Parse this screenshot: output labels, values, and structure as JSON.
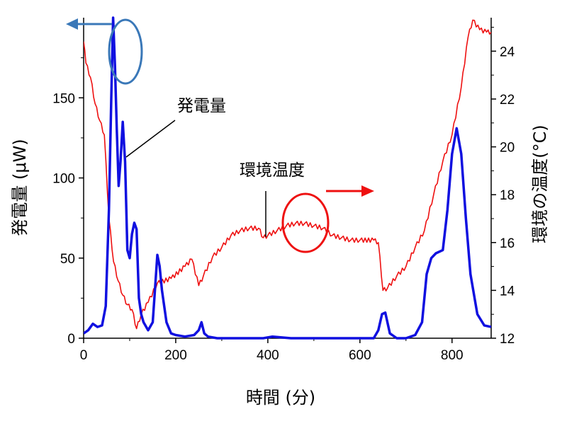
{
  "chart_data": {
    "type": "line",
    "xlabel": "時間 (分)",
    "ylabel_left": "発電量 (μW)",
    "ylabel_right": "環境の温度(°C)",
    "xlim": [
      0,
      885
    ],
    "ylim_left": [
      0,
      200
    ],
    "ylim_right": [
      12,
      25.4
    ],
    "x_ticks": [
      0,
      200,
      400,
      600,
      800
    ],
    "y_left_ticks": [
      0,
      50,
      100,
      150
    ],
    "y_right_ticks": [
      12,
      14,
      16,
      18,
      20,
      22,
      24
    ],
    "grid": false,
    "annotations": {
      "power": "発電量",
      "temperature": "環境温度"
    },
    "series": [
      {
        "name": "発電量",
        "axis": "left",
        "color": "#1010e0",
        "x": [
          0,
          10,
          20,
          30,
          40,
          48,
          55,
          60,
          64,
          68,
          72,
          76,
          80,
          85,
          90,
          95,
          100,
          105,
          110,
          115,
          120,
          125,
          130,
          140,
          150,
          160,
          165,
          170,
          180,
          190,
          200,
          220,
          240,
          250,
          256,
          262,
          270,
          290,
          320,
          360,
          390,
          410,
          450,
          500,
          550,
          600,
          630,
          640,
          648,
          655,
          665,
          680,
          700,
          720,
          735,
          745,
          755,
          765,
          780,
          790,
          800,
          810,
          820,
          830,
          840,
          855,
          870,
          885
        ],
        "y": [
          3,
          5,
          9,
          7,
          8,
          20,
          80,
          150,
          200,
          170,
          130,
          95,
          110,
          135,
          110,
          55,
          50,
          65,
          72,
          68,
          25,
          15,
          10,
          5,
          10,
          52,
          45,
          30,
          10,
          3,
          2,
          1,
          2,
          5,
          10,
          3,
          1,
          0,
          0,
          0,
          0,
          1,
          0,
          0,
          0,
          0,
          0,
          5,
          15,
          16,
          3,
          0,
          0,
          2,
          10,
          40,
          50,
          53,
          55,
          80,
          115,
          131,
          115,
          75,
          40,
          15,
          8,
          7
        ]
      },
      {
        "name": "環境温度",
        "axis": "right",
        "color": "#ee1010",
        "x": [
          0,
          5,
          15,
          25,
          35,
          45,
          55,
          65,
          75,
          85,
          95,
          105,
          115,
          125,
          140,
          160,
          190,
          220,
          235,
          250,
          260,
          280,
          300,
          320,
          340,
          360,
          380,
          390,
          400,
          420,
          440,
          460,
          480,
          500,
          520,
          540,
          560,
          580,
          600,
          630,
          640,
          650,
          660,
          680,
          700,
          720,
          740,
          760,
          780,
          800,
          820,
          835,
          845,
          860,
          875,
          885
        ],
        "y": [
          24.4,
          23.5,
          22.9,
          21.8,
          21.1,
          20.5,
          17.0,
          15.2,
          14.4,
          13.8,
          13.4,
          13.2,
          12.4,
          13.0,
          13.5,
          14.3,
          14.5,
          15.0,
          15.3,
          14.2,
          14.6,
          15.4,
          15.8,
          16.3,
          16.5,
          16.6,
          16.6,
          16.2,
          16.3,
          16.5,
          16.7,
          16.8,
          16.8,
          16.7,
          16.6,
          16.3,
          16.2,
          16.1,
          16.1,
          16.1,
          16.0,
          14.0,
          14.1,
          14.6,
          15.0,
          15.8,
          16.5,
          18.0,
          19.4,
          20.5,
          22.5,
          24.6,
          25.3,
          24.9,
          24.8,
          24.8
        ]
      }
    ]
  }
}
